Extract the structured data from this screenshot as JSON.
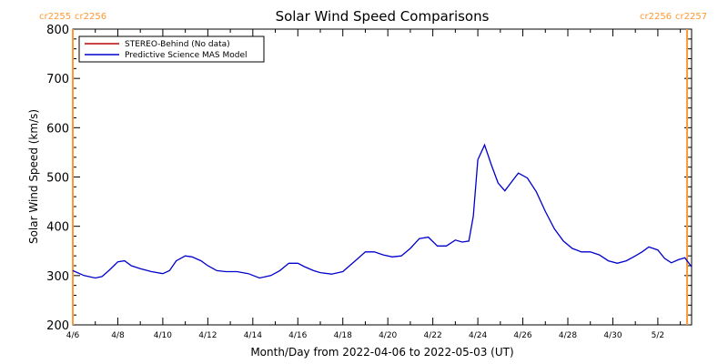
{
  "chart_data": {
    "type": "line",
    "title": "Solar Wind Speed Comparisons",
    "xlabel": "Month/Day from 2022-04-06 to 2022-05-03 (UT)",
    "ylabel": "Solar Wind Speed (km/s)",
    "ylim": [
      200,
      800
    ],
    "yticks": [
      200,
      300,
      400,
      500,
      600,
      700,
      800
    ],
    "xlim_days": [
      0,
      27.5
    ],
    "xticks": [
      {
        "day": 0,
        "label": "4/6"
      },
      {
        "day": 2,
        "label": "4/8"
      },
      {
        "day": 4,
        "label": "4/10"
      },
      {
        "day": 6,
        "label": "4/12"
      },
      {
        "day": 8,
        "label": "4/14"
      },
      {
        "day": 10,
        "label": "4/16"
      },
      {
        "day": 12,
        "label": "4/18"
      },
      {
        "day": 14,
        "label": "4/20"
      },
      {
        "day": 16,
        "label": "4/22"
      },
      {
        "day": 18,
        "label": "4/24"
      },
      {
        "day": 20,
        "label": "4/26"
      },
      {
        "day": 22,
        "label": "4/28"
      },
      {
        "day": 24,
        "label": "4/30"
      },
      {
        "day": 26,
        "label": "5/2"
      }
    ],
    "grid": false,
    "legend_position": "top-left",
    "series": [
      {
        "name": "STEREO-Behind (No data)",
        "color": "#c00000",
        "x": [],
        "y": []
      },
      {
        "name": "Predictive Science MAS Model",
        "color": "#0000cc",
        "x": [
          0.0,
          0.5,
          1.0,
          1.3,
          1.6,
          2.0,
          2.3,
          2.6,
          3.0,
          3.5,
          4.0,
          4.3,
          4.6,
          5.0,
          5.3,
          5.7,
          6.0,
          6.4,
          6.8,
          7.3,
          7.8,
          8.3,
          8.8,
          9.2,
          9.6,
          10.0,
          10.3,
          10.7,
          11.0,
          11.5,
          12.0,
          12.5,
          13.0,
          13.4,
          13.8,
          14.2,
          14.6,
          15.0,
          15.4,
          15.8,
          16.2,
          16.6,
          17.0,
          17.3,
          17.6,
          17.8,
          18.0,
          18.3,
          18.6,
          18.9,
          19.2,
          19.5,
          19.8,
          20.2,
          20.6,
          21.0,
          21.4,
          21.8,
          22.2,
          22.6,
          23.0,
          23.4,
          23.8,
          24.2,
          24.6,
          25.0,
          25.3,
          25.6,
          26.0,
          26.3,
          26.6,
          26.9,
          27.2,
          27.5
        ],
        "y": [
          310,
          300,
          295,
          298,
          310,
          328,
          330,
          320,
          314,
          308,
          304,
          310,
          330,
          340,
          338,
          330,
          320,
          310,
          308,
          308,
          304,
          295,
          300,
          310,
          325,
          325,
          318,
          310,
          306,
          303,
          308,
          328,
          348,
          348,
          342,
          338,
          340,
          355,
          375,
          378,
          360,
          360,
          372,
          368,
          370,
          420,
          535,
          565,
          525,
          488,
          472,
          490,
          508,
          498,
          470,
          430,
          395,
          370,
          355,
          348,
          348,
          342,
          330,
          325,
          330,
          340,
          348,
          358,
          352,
          335,
          326,
          332,
          336,
          318
        ]
      }
    ],
    "vertical_markers": [
      {
        "day": 0.0,
        "color": "#ff9933"
      },
      {
        "day": 27.3,
        "color": "#ff9933"
      }
    ],
    "corner_labels": {
      "left": [
        "cr2255",
        "cr2256"
      ],
      "right": [
        "cr2256",
        "cr2257"
      ]
    }
  }
}
